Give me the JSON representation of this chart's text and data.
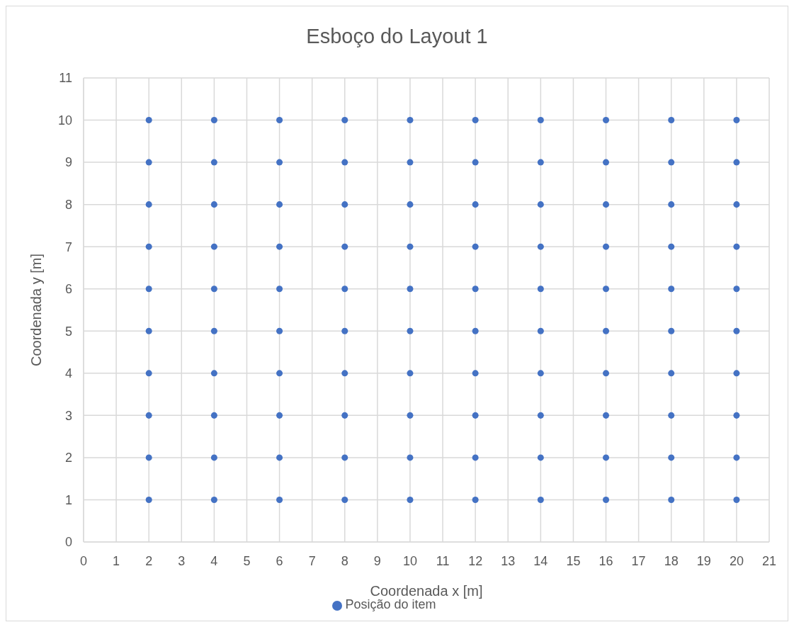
{
  "chart_data": {
    "type": "scatter",
    "title": "Esboço do Layout 1",
    "xlabel": "Coordenada x [m]",
    "ylabel": "Coordenada y [m]",
    "series": [
      {
        "name": "Posição do item",
        "color": "#4472c4",
        "x": [
          2,
          2,
          2,
          2,
          2,
          2,
          2,
          2,
          2,
          2,
          4,
          4,
          4,
          4,
          4,
          4,
          4,
          4,
          4,
          4,
          6,
          6,
          6,
          6,
          6,
          6,
          6,
          6,
          6,
          6,
          8,
          8,
          8,
          8,
          8,
          8,
          8,
          8,
          8,
          8,
          10,
          10,
          10,
          10,
          10,
          10,
          10,
          10,
          10,
          10,
          12,
          12,
          12,
          12,
          12,
          12,
          12,
          12,
          12,
          12,
          14,
          14,
          14,
          14,
          14,
          14,
          14,
          14,
          14,
          14,
          16,
          16,
          16,
          16,
          16,
          16,
          16,
          16,
          16,
          16,
          18,
          18,
          18,
          18,
          18,
          18,
          18,
          18,
          18,
          18,
          20,
          20,
          20,
          20,
          20,
          20,
          20,
          20,
          20,
          20
        ],
        "values": [
          1,
          2,
          3,
          4,
          5,
          6,
          7,
          8,
          9,
          10,
          1,
          2,
          3,
          4,
          5,
          6,
          7,
          8,
          9,
          10,
          1,
          2,
          3,
          4,
          5,
          6,
          7,
          8,
          9,
          10,
          1,
          2,
          3,
          4,
          5,
          6,
          7,
          8,
          9,
          10,
          1,
          2,
          3,
          4,
          5,
          6,
          7,
          8,
          9,
          10,
          1,
          2,
          3,
          4,
          5,
          6,
          7,
          8,
          9,
          10,
          1,
          2,
          3,
          4,
          5,
          6,
          7,
          8,
          9,
          10,
          1,
          2,
          3,
          4,
          5,
          6,
          7,
          8,
          9,
          10,
          1,
          2,
          3,
          4,
          5,
          6,
          7,
          8,
          9,
          10,
          1,
          2,
          3,
          4,
          5,
          6,
          7,
          8,
          9,
          10
        ]
      }
    ],
    "xlim": [
      0,
      21
    ],
    "xticks": [
      0,
      1,
      2,
      3,
      4,
      5,
      6,
      7,
      8,
      9,
      10,
      11,
      12,
      13,
      14,
      15,
      16,
      17,
      18,
      19,
      20,
      21
    ],
    "ylim": [
      0,
      11
    ],
    "yticks": [
      0,
      1,
      2,
      3,
      4,
      5,
      6,
      7,
      8,
      9,
      10,
      11
    ],
    "grid": true,
    "legend": "bottom",
    "marker": "circle"
  }
}
